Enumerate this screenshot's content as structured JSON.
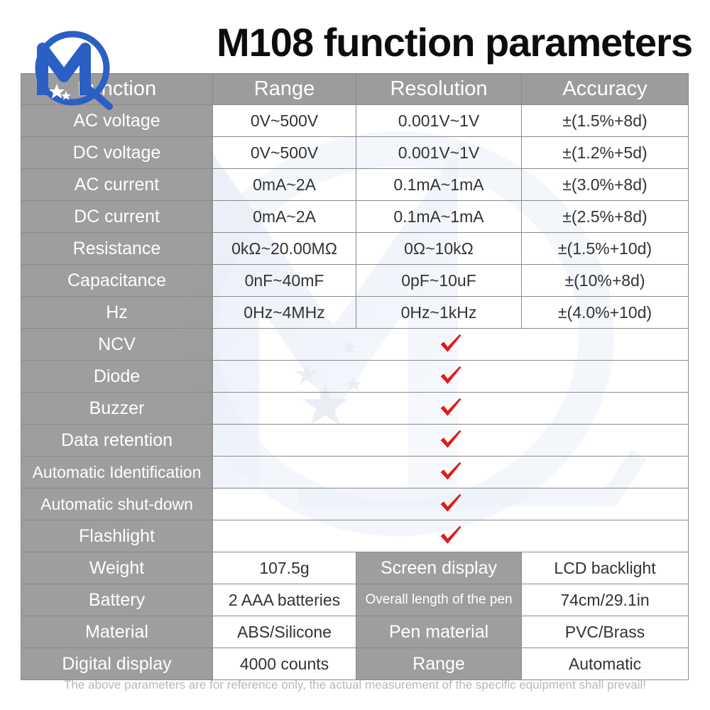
{
  "title": "M108 function parameters",
  "table": {
    "headers": [
      "Function",
      "Range",
      "Resolution",
      "Accuracy"
    ],
    "measurement_rows": [
      {
        "function": "AC voltage",
        "range": "0V~500V",
        "resolution": "0.001V~1V",
        "accuracy": "±(1.5%+8d)"
      },
      {
        "function": "DC voltage",
        "range": "0V~500V",
        "resolution": "0.001V~1V",
        "accuracy": "±(1.2%+5d)"
      },
      {
        "function": "AC current",
        "range": "0mA~2A",
        "resolution": "0.1mA~1mA",
        "accuracy": "±(3.0%+8d)"
      },
      {
        "function": "DC current",
        "range": "0mA~2A",
        "resolution": "0.1mA~1mA",
        "accuracy": "±(2.5%+8d)"
      },
      {
        "function": "Resistance",
        "range": "0kΩ~20.00MΩ",
        "resolution": "0Ω~10kΩ",
        "accuracy": "±(1.5%+10d)"
      },
      {
        "function": "Capacitance",
        "range": "0nF~40mF",
        "resolution": "0pF~10uF",
        "accuracy": "±(10%+8d)"
      },
      {
        "function": "Hz",
        "range": "0Hz~4MHz",
        "resolution": "0Hz~1kHz",
        "accuracy": "±(4.0%+10d)"
      }
    ],
    "feature_rows": [
      {
        "function": "NCV",
        "supported": true
      },
      {
        "function": "Diode",
        "supported": true
      },
      {
        "function": "Buzzer",
        "supported": true
      },
      {
        "function": "Data retention",
        "supported": true
      },
      {
        "function": "Automatic Identification",
        "supported": true
      },
      {
        "function": "Automatic shut-down",
        "supported": true
      },
      {
        "function": "Flashlight",
        "supported": true
      }
    ],
    "spec_rows": [
      {
        "label1": "Weight",
        "value1": "107.5g",
        "label2": "Screen display",
        "value2": "LCD backlight"
      },
      {
        "label1": "Battery",
        "value1": "2 AAA batteries",
        "label2": "Overall length of the pen",
        "value2": "74cm/29.1in"
      },
      {
        "label1": "Material",
        "value1": "ABS/Silicone",
        "label2": "Pen material",
        "value2": "PVC/Brass"
      },
      {
        "label1": "Digital display",
        "value1": "4000 counts",
        "label2": "Range",
        "value2": "Automatic"
      }
    ]
  },
  "check_icon": "red-checkmark-icon",
  "check_color": "#e01b1b",
  "logo": {
    "icon": "m-logo-icon",
    "primary_color": "#2b5fc4",
    "letter": "M"
  },
  "footnote": "The above parameters are for reference only, the actual measurement of the specific equipment shall prevail!"
}
